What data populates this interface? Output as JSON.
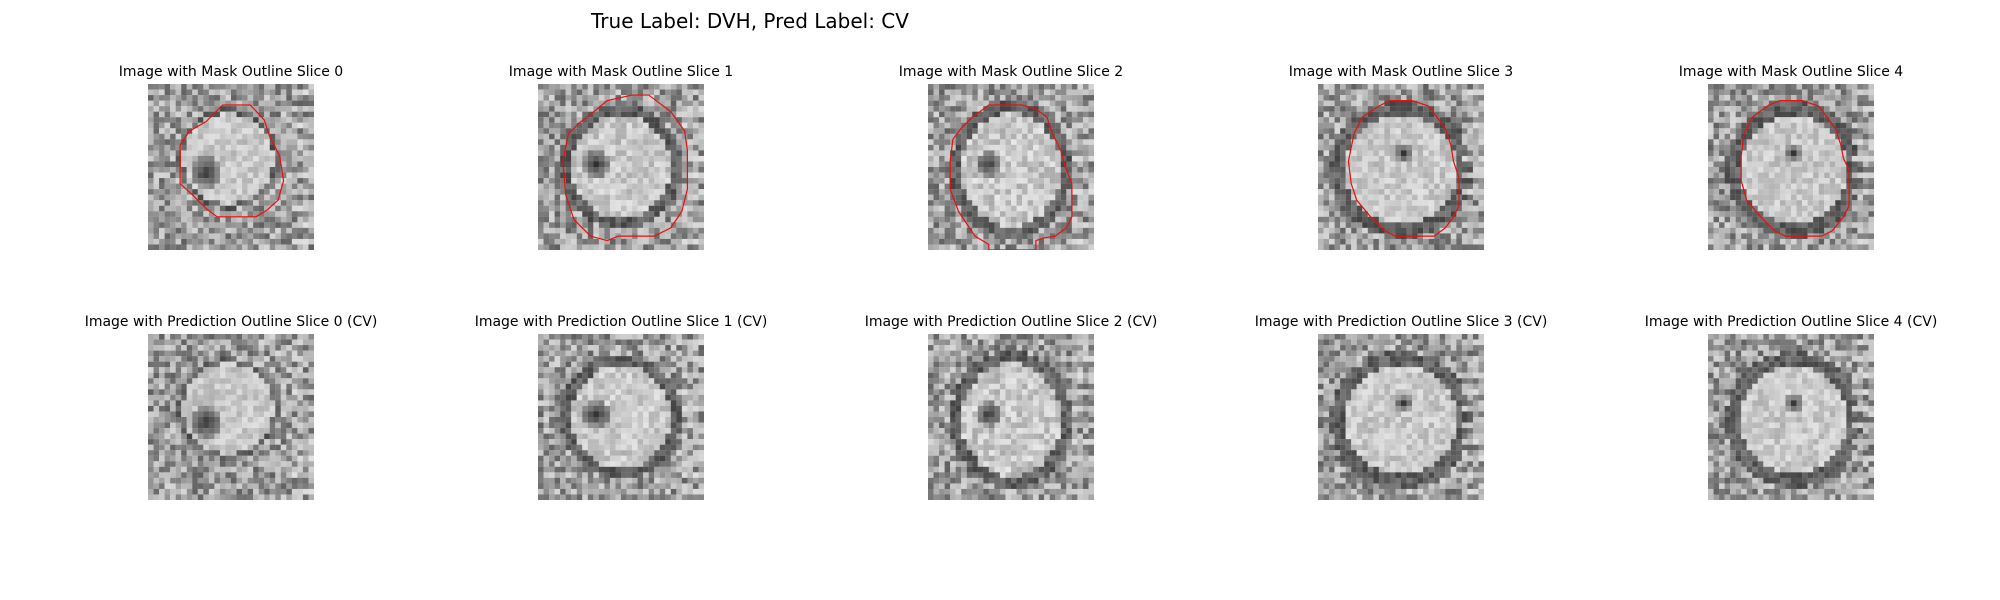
{
  "figure": {
    "suptitle": "True Label: DVH, Pred Label: CV"
  },
  "colors": {
    "outline": "#e81010",
    "background": "#ffffff"
  },
  "mask_row": {
    "panels": [
      {
        "title": "Image with Mask Outline Slice 0",
        "slice": 0
      },
      {
        "title": "Image with Mask Outline Slice 1",
        "slice": 1
      },
      {
        "title": "Image with Mask Outline Slice 2",
        "slice": 2
      },
      {
        "title": "Image with Mask Outline Slice 3",
        "slice": 3
      },
      {
        "title": "Image with Mask Outline Slice 4",
        "slice": 4
      }
    ]
  },
  "prediction_row": {
    "panels": [
      {
        "title": "Image with Prediction Outline Slice 0 (CV)",
        "slice": 0
      },
      {
        "title": "Image with Prediction Outline Slice 1 (CV)",
        "slice": 1
      },
      {
        "title": "Image with Prediction Outline Slice 2 (CV)",
        "slice": 2
      },
      {
        "title": "Image with Prediction Outline Slice 3 (CV)",
        "slice": 3
      },
      {
        "title": "Image with Prediction Outline Slice 4 (CV)",
        "slice": 4
      }
    ]
  }
}
